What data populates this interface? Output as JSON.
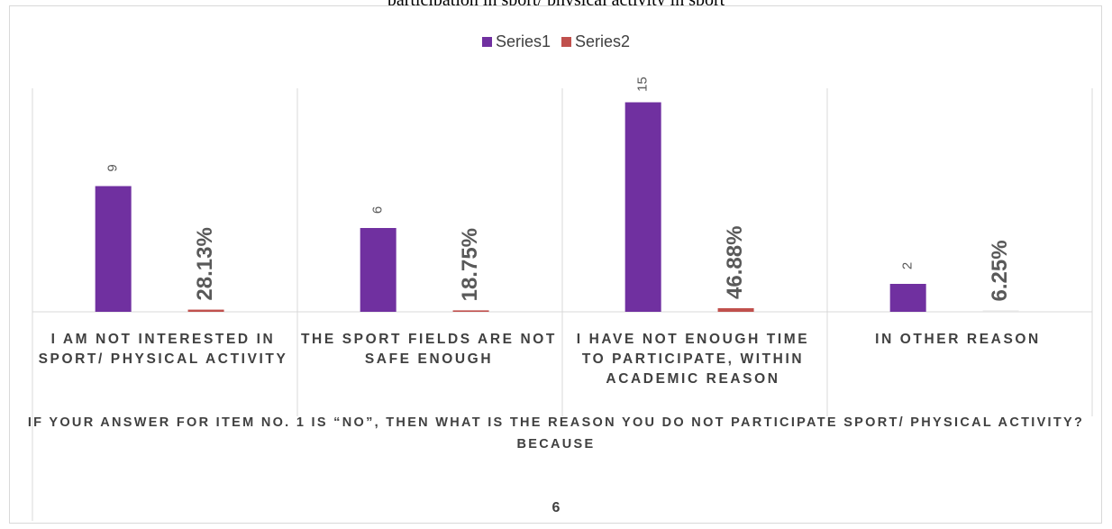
{
  "top_caption": "participation in sport/ physical activity in sport",
  "chart_data": {
    "type": "bar",
    "categories": [
      "I AM NOT INTERESTED IN SPORT/ PHYSICAL ACTIVITY",
      "THE SPORT FIELDS ARE NOT SAFE ENOUGH",
      "I HAVE NOT ENOUGH TIME TO PARTICIPATE, WITHIN ACADEMIC REASON",
      "IN OTHER REASON"
    ],
    "series": [
      {
        "name": "Series1",
        "values": [
          9,
          6,
          15,
          2
        ],
        "labels": [
          "9",
          "6",
          "15",
          "2"
        ],
        "color": "#7030a0"
      },
      {
        "name": "Series2",
        "values": [
          0.2813,
          0.1875,
          0.4688,
          0.0625
        ],
        "labels": [
          "28.13%",
          "18.75%",
          "46.88%",
          "6.25%"
        ],
        "color": "#c0504d"
      }
    ],
    "title": "",
    "xlabel": "IF YOUR ANSWER FOR ITEM NO. 1 IS “NO”, THEN WHAT IS THE REASON YOU DO NOT PARTICIPATE SPORT/ PHYSICAL ACTIVITY? BECAUSE",
    "ylabel": "",
    "ylim": [
      0,
      16
    ],
    "grid": false,
    "legend_position": "top"
  },
  "page_number": "6"
}
